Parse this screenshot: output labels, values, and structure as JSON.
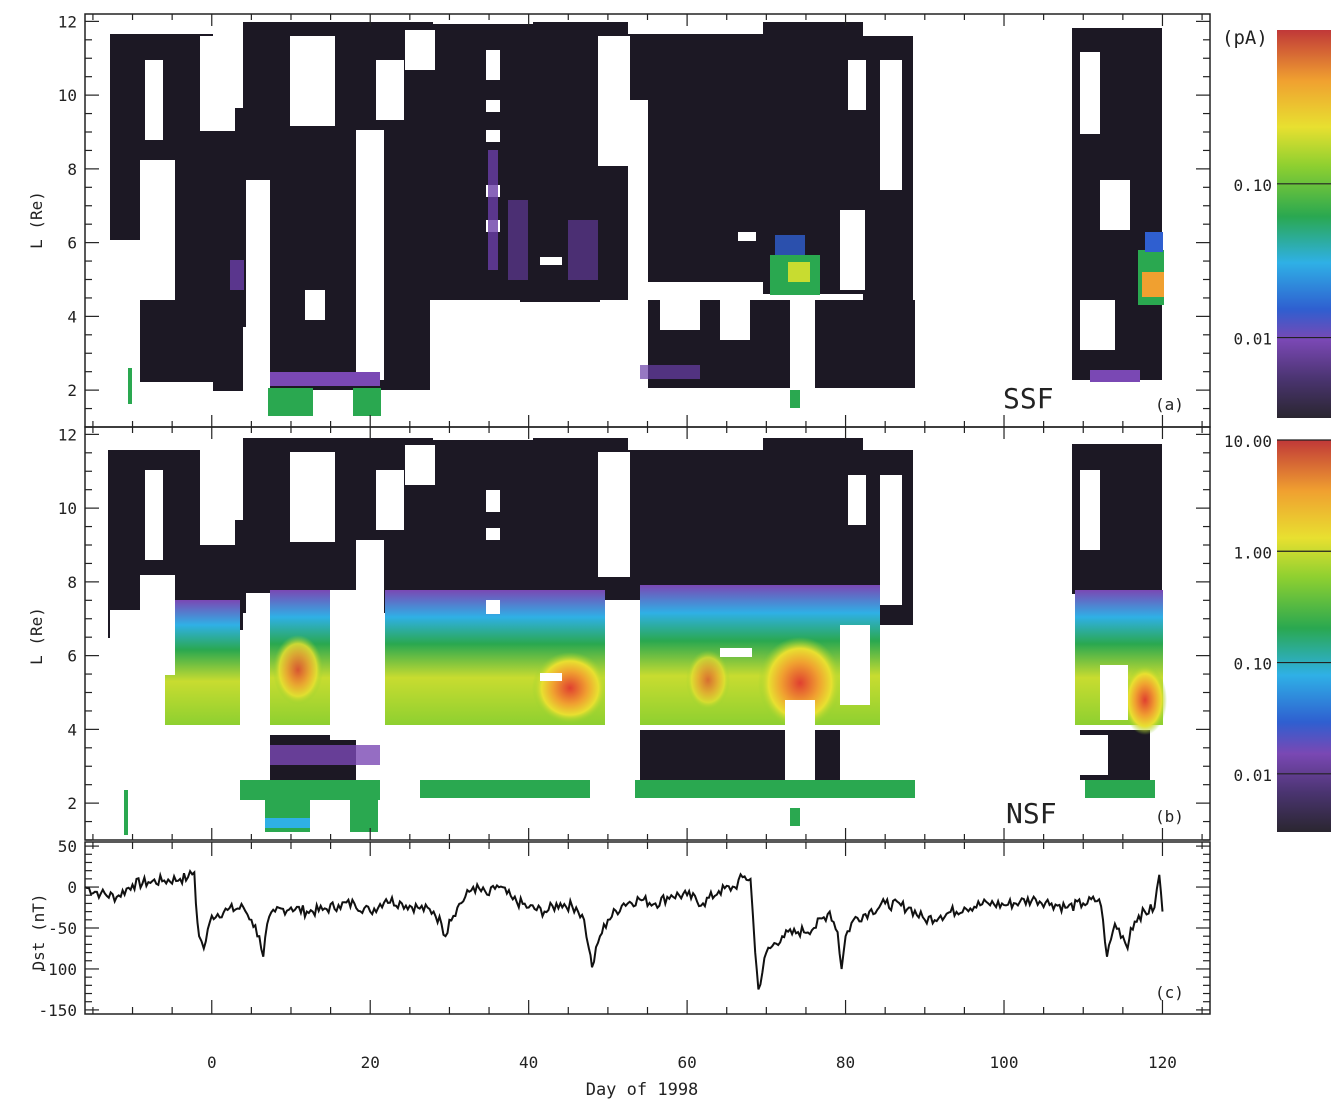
{
  "chart_data": [
    {
      "type": "heatmap",
      "panel_label": "(a)",
      "annotation": "SSF",
      "ylabel": "L (Re)",
      "xlim": [
        -16,
        126
      ],
      "ylim": [
        1,
        12.2
      ],
      "yticks": [
        2,
        4,
        6,
        8,
        10,
        12
      ],
      "colorbar": {
        "unit_label": "(pA)",
        "scale": "log",
        "range": [
          0.003,
          1.0
        ],
        "tick_labels": [
          "0.10",
          "0.01"
        ],
        "tick_values": [
          0.1,
          0.01
        ]
      },
      "data_gap_days": [
        89,
        110
      ],
      "features": [
        {
          "day_range": [
            -15,
            -12
          ],
          "L_range": [
            1,
            1.7
          ],
          "level": "green"
        },
        {
          "day_range": [
            6,
            11
          ],
          "L_range": [
            1,
            1.7
          ],
          "level": "green"
        },
        {
          "day_range": [
            18,
            23
          ],
          "L_range": [
            1,
            1.7
          ],
          "level": "green"
        },
        {
          "day_range": [
            72,
            78
          ],
          "L_range": [
            4,
            5.5
          ],
          "level": "green-yellow"
        },
        {
          "day_range": [
            117,
            120
          ],
          "L_range": [
            3.7,
            5.2
          ],
          "level": "orange"
        }
      ]
    },
    {
      "type": "heatmap",
      "panel_label": "(b)",
      "annotation": "NSF",
      "ylabel": "L (Re)",
      "xlim": [
        -16,
        126
      ],
      "ylim": [
        1,
        12.2
      ],
      "yticks": [
        2,
        4,
        6,
        8,
        10,
        12
      ],
      "colorbar": {
        "unit_label": "",
        "scale": "log",
        "range": [
          0.003,
          10.0
        ],
        "tick_labels": [
          "10.00",
          "1.00",
          "0.10",
          "0.01"
        ],
        "tick_values": [
          10,
          1,
          0.1,
          0.01
        ]
      },
      "data_gap_days": [
        89,
        110
      ],
      "features": [
        {
          "day_range": [
            7,
            11
          ],
          "L_range": [
            4.2,
            6
          ],
          "level": "yellow"
        },
        {
          "day_range": [
            36,
            44
          ],
          "L_range": [
            4.2,
            5.8
          ],
          "level": "orange"
        },
        {
          "day_range": [
            70,
            78
          ],
          "L_range": [
            3.8,
            5.6
          ],
          "level": "red"
        },
        {
          "day_range": [
            116,
            120
          ],
          "L_range": [
            3.8,
            5.2
          ],
          "level": "red"
        }
      ]
    },
    {
      "type": "line",
      "panel_label": "(c)",
      "ylabel": "Dst (nT)",
      "xlabel": "Day of 1998",
      "xlim": [
        -16,
        126
      ],
      "ylim": [
        -155,
        55
      ],
      "yticks": [
        -150,
        -100,
        -50,
        0,
        50
      ],
      "xticks": [
        0,
        20,
        40,
        60,
        80,
        100,
        120
      ],
      "series": [
        {
          "x": [
            -16,
            -14,
            -12,
            -10,
            -8,
            -6,
            -4,
            -3,
            -2.2,
            -2,
            -1.6,
            -1,
            0,
            2,
            4,
            5,
            6,
            6.5,
            7,
            8,
            10,
            12,
            14,
            16,
            18,
            20,
            22,
            24,
            26,
            28,
            29,
            29.5,
            30,
            31,
            33,
            35,
            36,
            38,
            40,
            42,
            44,
            46,
            47,
            47.6,
            48,
            49,
            50,
            52,
            54,
            56,
            58,
            60,
            62,
            64,
            66,
            67,
            68,
            68.6,
            69,
            70,
            72,
            74,
            76,
            78,
            79,
            79.5,
            80,
            81,
            83,
            85,
            88,
            90,
            92,
            95,
            98,
            100,
            102,
            104,
            106,
            108,
            110,
            112,
            112.5,
            113,
            114,
            115,
            115.6,
            116,
            117,
            119,
            119.6,
            120
          ],
          "y": [
            0,
            -8,
            -12,
            3,
            6,
            8,
            10,
            12,
            18,
            -20,
            -60,
            -75,
            -35,
            -28,
            -25,
            -40,
            -60,
            -85,
            -45,
            -30,
            -25,
            -30,
            -28,
            -22,
            -20,
            -30,
            -15,
            -20,
            -25,
            -30,
            -45,
            -60,
            -40,
            -25,
            0,
            -10,
            2,
            -15,
            -25,
            -30,
            -20,
            -25,
            -40,
            -75,
            -98,
            -60,
            -40,
            -20,
            -15,
            -20,
            -10,
            -10,
            -20,
            -5,
            0,
            12,
            10,
            -80,
            -125,
            -80,
            -60,
            -55,
            -50,
            -30,
            -55,
            -100,
            -60,
            -40,
            -30,
            -20,
            -25,
            -40,
            -35,
            -25,
            -20,
            -22,
            -18,
            -15,
            -20,
            -25,
            -20,
            -15,
            -40,
            -85,
            -45,
            -60,
            -75,
            -50,
            -35,
            -25,
            15,
            -30
          ]
        }
      ]
    }
  ],
  "x_axis": {
    "label": "Day of 1998",
    "tick_labels": [
      "0",
      "20",
      "40",
      "60",
      "80",
      "100",
      "120"
    ]
  },
  "colors": {
    "background_black": "#1c1824",
    "colorscale": [
      "#2a2630",
      "#5a3a86",
      "#7a48b4",
      "#2f5fd0",
      "#2fb0e6",
      "#2aa850",
      "#8ed030",
      "#e8e030",
      "#f0a030",
      "#e04030",
      "#b03030"
    ]
  }
}
